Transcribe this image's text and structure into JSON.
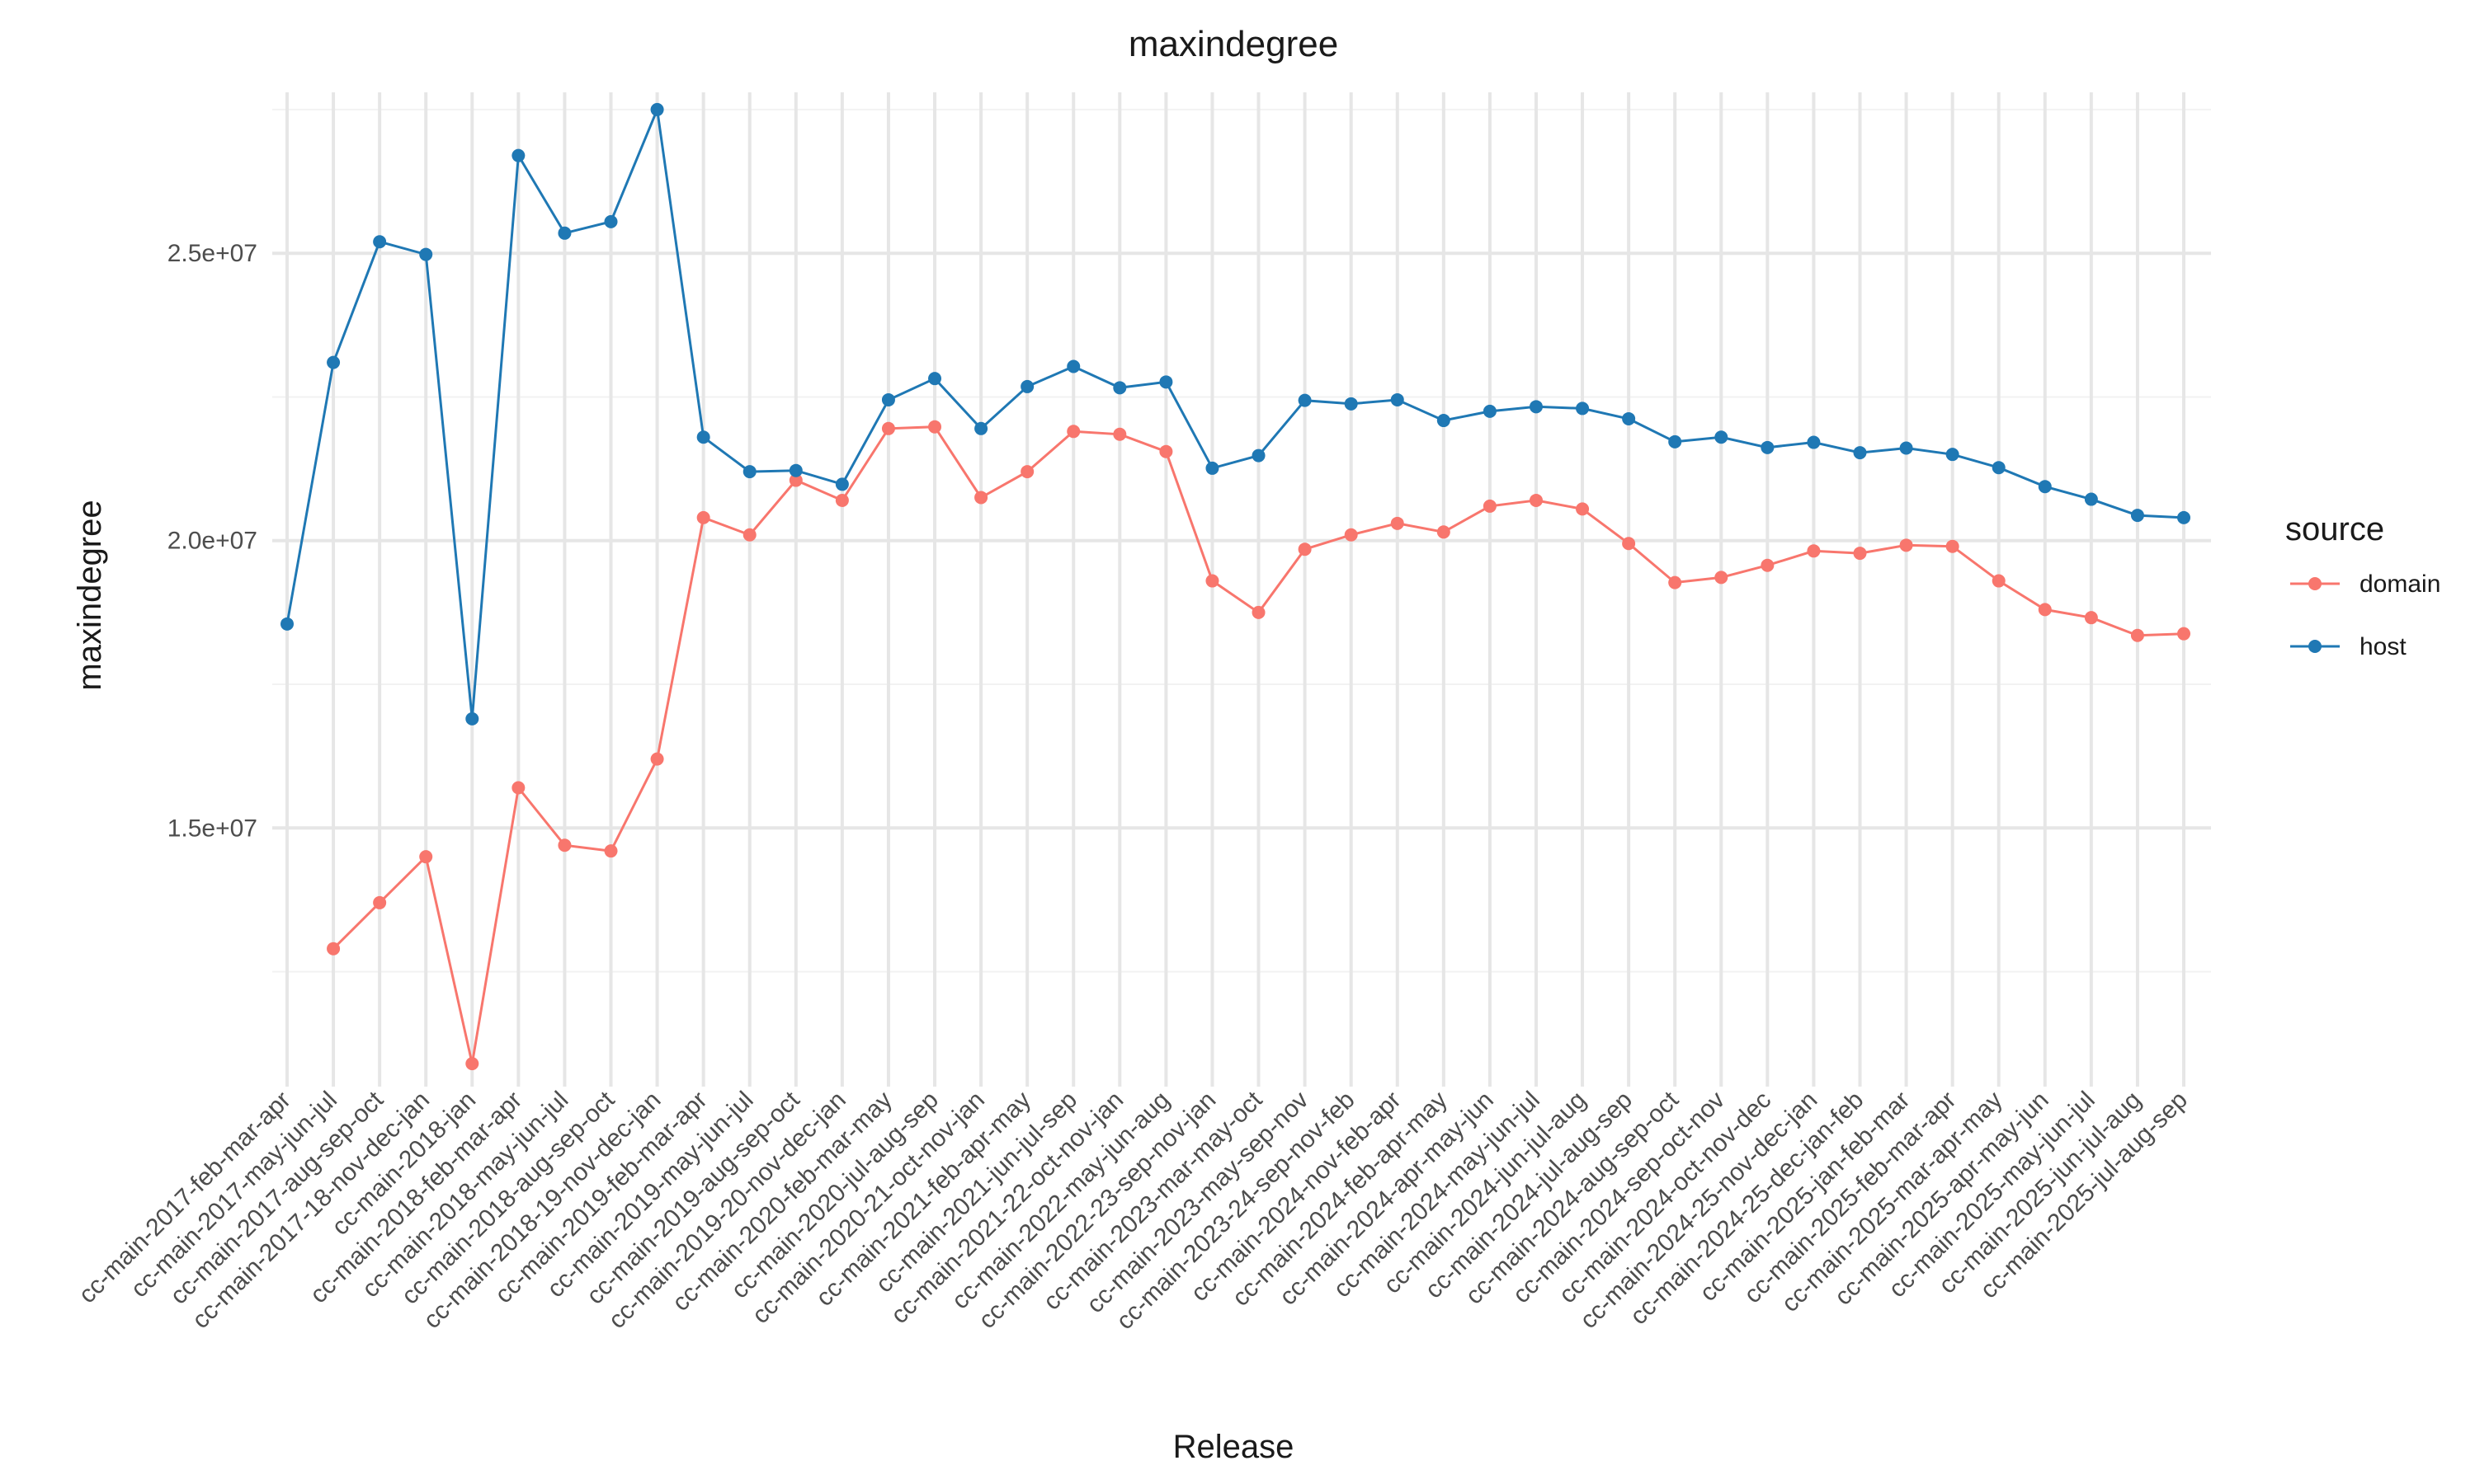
{
  "chart_data": {
    "type": "line",
    "title": "maxindegree",
    "xlabel": "Release",
    "ylabel": "maxindegree",
    "ylim": [
      10500000,
      27800000
    ],
    "yticks": [
      15000000,
      20000000,
      25000000
    ],
    "ytick_labels": [
      "1.5e+07",
      "2.0e+07",
      "2.5e+07"
    ],
    "grid": true,
    "legend": {
      "title": "source",
      "position": "right"
    },
    "categories": [
      "cc-main-2017-feb-mar-apr",
      "cc-main-2017-may-jun-jul",
      "cc-main-2017-aug-sep-oct",
      "cc-main-2017-18-nov-dec-jan",
      "cc-main-2018-jan",
      "cc-main-2018-feb-mar-apr",
      "cc-main-2018-may-jun-jul",
      "cc-main-2018-aug-sep-oct",
      "cc-main-2018-19-nov-dec-jan",
      "cc-main-2019-feb-mar-apr",
      "cc-main-2019-may-jun-jul",
      "cc-main-2019-aug-sep-oct",
      "cc-main-2019-20-nov-dec-jan",
      "cc-main-2020-feb-mar-may",
      "cc-main-2020-jul-aug-sep",
      "cc-main-2020-21-oct-nov-jan",
      "cc-main-2021-feb-apr-may",
      "cc-main-2021-jun-jul-sep",
      "cc-main-2021-22-oct-nov-jan",
      "cc-main-2022-may-jun-aug",
      "cc-main-2022-23-sep-nov-jan",
      "cc-main-2023-mar-may-oct",
      "cc-main-2023-may-sep-nov",
      "cc-main-2023-24-sep-nov-feb",
      "cc-main-2024-nov-feb-apr",
      "cc-main-2024-feb-apr-may",
      "cc-main-2024-apr-may-jun",
      "cc-main-2024-may-jun-jul",
      "cc-main-2024-jun-jul-aug",
      "cc-main-2024-jul-aug-sep",
      "cc-main-2024-aug-sep-oct",
      "cc-main-2024-sep-oct-nov",
      "cc-main-2024-oct-nov-dec",
      "cc-main-2024-25-nov-dec-jan",
      "cc-main-2024-25-dec-jan-feb",
      "cc-main-2025-jan-feb-mar",
      "cc-main-2025-feb-mar-apr",
      "cc-main-2025-mar-apr-may",
      "cc-main-2025-apr-may-jun",
      "cc-main-2025-may-jun-jul",
      "cc-main-2025-jun-jul-aug",
      "cc-main-2025-jul-aug-sep"
    ],
    "series": [
      {
        "name": "domain",
        "color": "#F8766D",
        "values": [
          null,
          12900000,
          13700000,
          14500000,
          10900000,
          15700000,
          14700000,
          14600000,
          16200000,
          20400000,
          20100000,
          21050000,
          20700000,
          21950000,
          21980000,
          20750000,
          21200000,
          21900000,
          21850000,
          21550000,
          19300000,
          18750000,
          19850000,
          20100000,
          20300000,
          20150000,
          20600000,
          20700000,
          20550000,
          19950000,
          19270000,
          19360000,
          19570000,
          19820000,
          19780000,
          19920000,
          19900000,
          19300000,
          18800000,
          18660000,
          18350000,
          18380000
        ]
      },
      {
        "name": "host",
        "color": "#1F78B4",
        "values": [
          18550000,
          23100000,
          25200000,
          24980000,
          16900000,
          26700000,
          25350000,
          25550000,
          27500000,
          21800000,
          21200000,
          21220000,
          20980000,
          22450000,
          22820000,
          21950000,
          22680000,
          23030000,
          22660000,
          22760000,
          21260000,
          21480000,
          22440000,
          22380000,
          22450000,
          22090000,
          22250000,
          22330000,
          22300000,
          22120000,
          21720000,
          21800000,
          21620000,
          21710000,
          21530000,
          21610000,
          21500000,
          21270000,
          20940000,
          20720000,
          20440000,
          20400000
        ]
      }
    ]
  }
}
